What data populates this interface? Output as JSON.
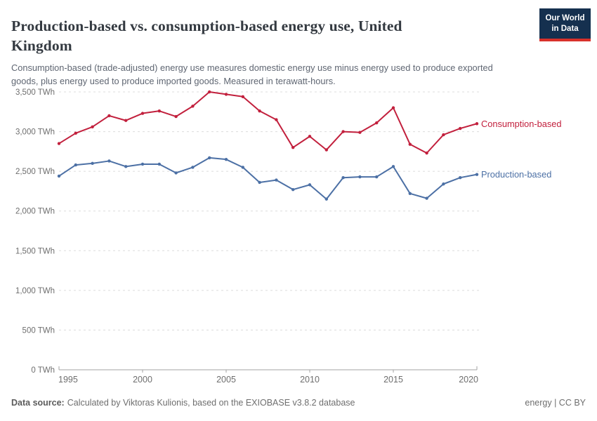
{
  "header": {
    "title": "Production-based vs. consumption-based energy use, United Kingdom",
    "subtitle": "Consumption-based (trade-adjusted) energy use measures domestic energy use minus energy used to produce exported goods, plus energy used to produce imported goods. Measured in terawatt-hours.",
    "logo": {
      "line1": "Our World",
      "line2": "in Data"
    }
  },
  "chart_data": {
    "type": "line",
    "title": "Production-based vs. consumption-based energy use, United Kingdom",
    "unit": "TWh",
    "grid": "horizontal-dashed",
    "legend": "end-of-line-labels",
    "xlim": [
      1995,
      2020
    ],
    "ylim": [
      0,
      3500
    ],
    "x": [
      1995,
      1996,
      1997,
      1998,
      1999,
      2000,
      2001,
      2002,
      2003,
      2004,
      2005,
      2006,
      2007,
      2008,
      2009,
      2010,
      2011,
      2012,
      2013,
      2014,
      2015,
      2016,
      2017,
      2018,
      2019,
      2020
    ],
    "series": [
      {
        "name": "Consumption-based",
        "color": "#c2203d",
        "values": [
          2850,
          2980,
          3060,
          3200,
          3140,
          3230,
          3260,
          3190,
          3320,
          3500,
          3470,
          3440,
          3260,
          3150,
          2800,
          2940,
          2770,
          3000,
          2990,
          3110,
          3300,
          2840,
          2730,
          2960,
          3040,
          3100
        ]
      },
      {
        "name": "Production-based",
        "color": "#4c70a5",
        "values": [
          2440,
          2580,
          2600,
          2630,
          2560,
          2590,
          2590,
          2480,
          2550,
          2670,
          2650,
          2550,
          2360,
          2390,
          2270,
          2330,
          2150,
          2420,
          2430,
          2430,
          2560,
          2220,
          2160,
          2340,
          2420,
          2460
        ]
      }
    ],
    "yticks": [
      {
        "value": 0,
        "label": "0 TWh"
      },
      {
        "value": 500,
        "label": "500 TWh"
      },
      {
        "value": 1000,
        "label": "1,000 TWh"
      },
      {
        "value": 1500,
        "label": "1,500 TWh"
      },
      {
        "value": 2000,
        "label": "2,000 TWh"
      },
      {
        "value": 2500,
        "label": "2,500 TWh"
      },
      {
        "value": 3000,
        "label": "3,000 TWh"
      },
      {
        "value": 3500,
        "label": "3,500 TWh"
      }
    ],
    "xticks": [
      {
        "value": 1995,
        "label": "1995"
      },
      {
        "value": 2000,
        "label": "2000"
      },
      {
        "value": 2005,
        "label": "2005"
      },
      {
        "value": 2010,
        "label": "2010"
      },
      {
        "value": 2015,
        "label": "2015"
      },
      {
        "value": 2020,
        "label": "2020"
      }
    ]
  },
  "footer": {
    "source_label": "Data source:",
    "source_text": "Calculated by Viktoras Kulionis, based on the EXIOBASE v3.8.2 database",
    "license": "energy | CC BY"
  },
  "colors": {
    "consumption": "#c2203d",
    "production": "#4c70a5",
    "logo_bg": "#15304f",
    "logo_accent": "#d8312b",
    "gridline": "#dcdcdc",
    "axis": "#a3a3a3",
    "tick_text": "#6e6e6e"
  }
}
